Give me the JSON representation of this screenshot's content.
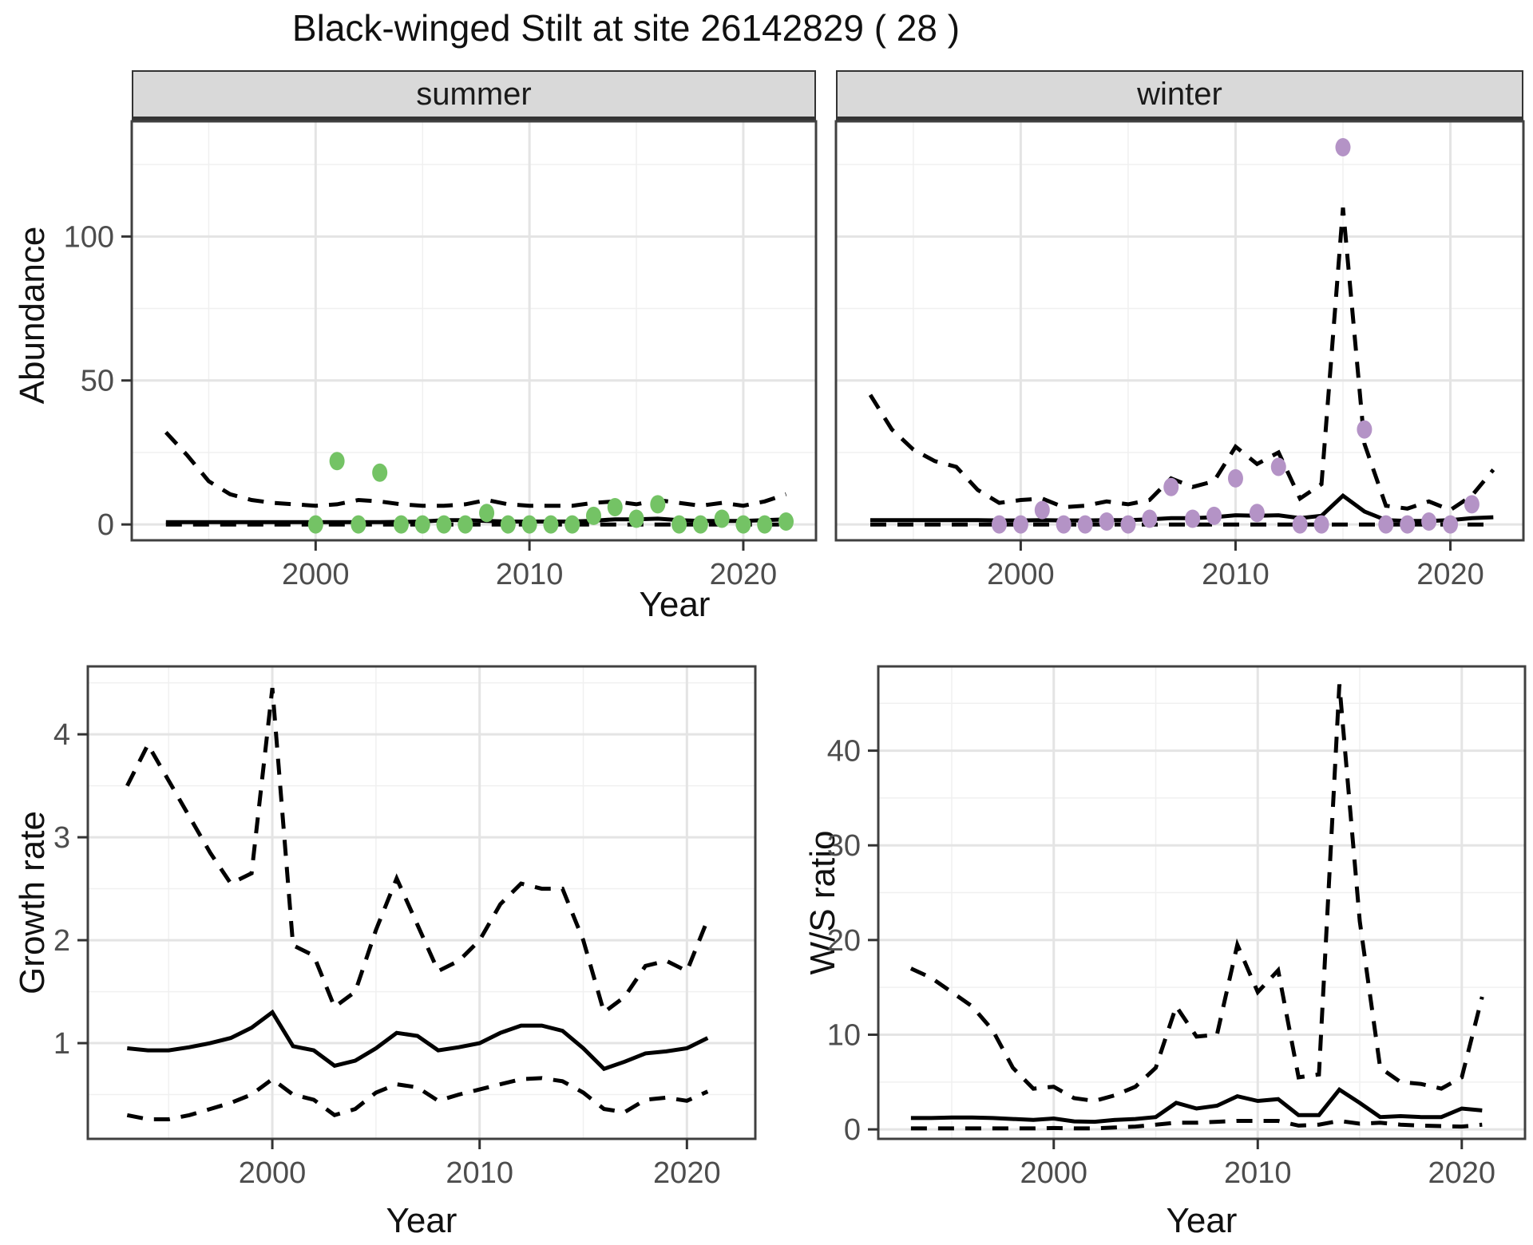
{
  "title": "Black-winged Stilt at site 26142829 ( 28 )",
  "facets": {
    "summer": "summer",
    "winter": "winter"
  },
  "axis_titles": {
    "abundance": "Abundance",
    "year_top": "Year",
    "growth": "Growth rate",
    "ws": "W/S ratio",
    "year_growth": "Year",
    "year_ws": "Year"
  },
  "colors": {
    "summer_points": "#74C365",
    "winter_points": "#B493C6",
    "line": "#000000",
    "strip_bg": "#d9d9d9",
    "grid_major": "#e4e4e4",
    "grid_minor": "#f0f0f0",
    "border": "#404040",
    "tick_mark": "#333333",
    "tick_text": "#4d4d4d"
  },
  "chart_data": [
    {
      "id": "abundance-summer",
      "type": "line",
      "facet": "summer",
      "xlabel": "Year",
      "ylabel": "Abundance",
      "xlim": [
        1991.4,
        2023.4
      ],
      "ylim": [
        -5.5,
        140
      ],
      "x_major": [
        2000,
        2010,
        2020
      ],
      "x_minor": [
        1995,
        2005,
        2015
      ],
      "y_major": [
        0,
        50,
        100
      ],
      "y_minor": [
        25,
        75,
        125
      ],
      "ticks_left": true,
      "series": [
        {
          "name": "upper-ci",
          "style": "dashed",
          "x": [
            1993,
            1994,
            1995,
            1996,
            1997,
            1998,
            1999,
            2000,
            2001,
            2002,
            2003,
            2004,
            2005,
            2006,
            2007,
            2008,
            2009,
            2010,
            2011,
            2012,
            2013,
            2014,
            2015,
            2016,
            2017,
            2018,
            2019,
            2020,
            2021,
            2022
          ],
          "y": [
            32,
            24,
            15,
            10.5,
            8.5,
            7.5,
            7,
            6.5,
            7,
            8.5,
            8,
            7,
            6.5,
            6.5,
            7,
            8.5,
            7,
            6.5,
            6.5,
            6.5,
            7.5,
            8,
            7,
            8.5,
            7.5,
            6.5,
            7.5,
            6.5,
            8,
            10.5
          ]
        },
        {
          "name": "median",
          "style": "solid",
          "x": [
            1993,
            1994,
            1995,
            1996,
            1997,
            1998,
            1999,
            2000,
            2001,
            2002,
            2003,
            2004,
            2005,
            2006,
            2007,
            2008,
            2009,
            2010,
            2011,
            2012,
            2013,
            2014,
            2015,
            2016,
            2017,
            2018,
            2019,
            2020,
            2021,
            2022
          ],
          "y": [
            0.8,
            0.8,
            0.8,
            0.8,
            0.8,
            0.8,
            0.8,
            0.8,
            0.8,
            0.8,
            0.8,
            0.9,
            1.0,
            1.5,
            1.5,
            1.2,
            1.0,
            1.0,
            1.0,
            1.0,
            1.3,
            1.8,
            1.8,
            2.0,
            1.5,
            1.2,
            1.2,
            1.2,
            1.5,
            1.8
          ]
        },
        {
          "name": "lower-ci",
          "style": "dashed",
          "x": [
            1993,
            2022
          ],
          "y": [
            0,
            0
          ]
        },
        {
          "name": "observed",
          "style": "points",
          "color_key": "summer_points",
          "x": [
            2000,
            2001,
            2002,
            2003,
            2004,
            2005,
            2006,
            2007,
            2008,
            2009,
            2010,
            2011,
            2012,
            2013,
            2014,
            2015,
            2016,
            2017,
            2018,
            2019,
            2020,
            2021,
            2022
          ],
          "y": [
            0,
            22,
            0,
            18,
            0,
            0,
            0,
            0,
            4,
            0,
            0,
            0,
            0,
            3,
            6,
            2,
            7,
            0,
            0,
            2,
            0,
            0,
            1
          ]
        }
      ]
    },
    {
      "id": "abundance-winter",
      "type": "line",
      "facet": "winter",
      "xlabel": "Year",
      "ylabel": "Abundance",
      "xlim": [
        1991.4,
        2023.4
      ],
      "ylim": [
        -5.5,
        140
      ],
      "x_major": [
        2000,
        2010,
        2020
      ],
      "x_minor": [
        1995,
        2005,
        2015
      ],
      "y_major": [
        0,
        50,
        100
      ],
      "y_minor": [
        25,
        75,
        125
      ],
      "ticks_left": false,
      "series": [
        {
          "name": "upper-ci",
          "style": "dashed",
          "x": [
            1993,
            1994,
            1995,
            1996,
            1997,
            1998,
            1999,
            2000,
            2001,
            2002,
            2003,
            2004,
            2005,
            2006,
            2007,
            2008,
            2009,
            2010,
            2011,
            2012,
            2013,
            2014,
            2015,
            2016,
            2017,
            2018,
            2019,
            2020,
            2021,
            2022
          ],
          "y": [
            45,
            33,
            26,
            22,
            20,
            12,
            7.5,
            8.5,
            9,
            6,
            6.5,
            8,
            7,
            8.5,
            16,
            13,
            15,
            27,
            21,
            25,
            9,
            14,
            110,
            28,
            6.5,
            5.5,
            8,
            5,
            10,
            19
          ]
        },
        {
          "name": "median",
          "style": "solid",
          "x": [
            1993,
            1994,
            1995,
            1996,
            1997,
            1998,
            1999,
            2000,
            2001,
            2002,
            2003,
            2004,
            2005,
            2006,
            2007,
            2008,
            2009,
            2010,
            2011,
            2012,
            2013,
            2014,
            2015,
            2016,
            2017,
            2018,
            2019,
            2020,
            2021,
            2022
          ],
          "y": [
            1.5,
            1.5,
            1.5,
            1.5,
            1.5,
            1.5,
            1.4,
            1.4,
            1.5,
            1.4,
            1.4,
            1.5,
            1.5,
            1.8,
            2.2,
            2.2,
            2.5,
            3.2,
            3.0,
            3.2,
            2.2,
            3.0,
            10,
            4.5,
            1.5,
            1.2,
            1.2,
            1.5,
            2.2,
            2.5
          ]
        },
        {
          "name": "lower-ci",
          "style": "dashed",
          "x": [
            1993,
            2022
          ],
          "y": [
            0,
            0
          ]
        },
        {
          "name": "observed",
          "style": "points",
          "color_key": "winter_points",
          "x": [
            1999,
            2000,
            2001,
            2002,
            2003,
            2004,
            2005,
            2006,
            2007,
            2008,
            2009,
            2010,
            2011,
            2012,
            2013,
            2014,
            2015,
            2016,
            2017,
            2018,
            2019,
            2020,
            2021
          ],
          "y": [
            0,
            0,
            5,
            0,
            0,
            1,
            0,
            2,
            13,
            2,
            3,
            16,
            4,
            20,
            0,
            0,
            131,
            33,
            0,
            0,
            1,
            0,
            7
          ]
        }
      ]
    },
    {
      "id": "growth-rate",
      "type": "line",
      "facet": null,
      "xlabel": "Year",
      "ylabel": "Growth rate",
      "xlim": [
        1991.1,
        2023.3
      ],
      "ylim": [
        0.07,
        4.66
      ],
      "x_major": [
        2000,
        2010,
        2020
      ],
      "x_minor": [
        1995,
        2005,
        2015
      ],
      "y_major": [
        1,
        2,
        3,
        4
      ],
      "y_minor": [
        0.5,
        1.5,
        2.5,
        3.5,
        4.5
      ],
      "ticks_left": true,
      "series": [
        {
          "name": "upper-ci",
          "style": "dashed",
          "x": [
            1993,
            1994,
            1995,
            1996,
            1997,
            1998,
            1999,
            2000,
            2001,
            2002,
            2003,
            2004,
            2005,
            2006,
            2007,
            2008,
            2009,
            2010,
            2011,
            2012,
            2013,
            2014,
            2015,
            2016,
            2017,
            2018,
            2019,
            2020,
            2021
          ],
          "y": [
            3.5,
            3.9,
            3.55,
            3.2,
            2.85,
            2.55,
            2.65,
            4.45,
            1.95,
            1.85,
            1.35,
            1.5,
            2.1,
            2.6,
            2.15,
            1.7,
            1.8,
            2.0,
            2.35,
            2.55,
            2.5,
            2.5,
            2.0,
            1.3,
            1.45,
            1.75,
            1.8,
            1.7,
            2.2
          ]
        },
        {
          "name": "median",
          "style": "solid",
          "x": [
            1993,
            1994,
            1995,
            1996,
            1997,
            1998,
            1999,
            2000,
            2001,
            2002,
            2003,
            2004,
            2005,
            2006,
            2007,
            2008,
            2009,
            2010,
            2011,
            2012,
            2013,
            2014,
            2015,
            2016,
            2017,
            2018,
            2019,
            2020,
            2021
          ],
          "y": [
            0.95,
            0.93,
            0.93,
            0.96,
            1.0,
            1.05,
            1.15,
            1.3,
            0.97,
            0.93,
            0.78,
            0.83,
            0.95,
            1.1,
            1.07,
            0.93,
            0.96,
            1.0,
            1.1,
            1.17,
            1.17,
            1.12,
            0.95,
            0.75,
            0.82,
            0.9,
            0.92,
            0.95,
            1.05
          ]
        },
        {
          "name": "lower-ci",
          "style": "dashed",
          "x": [
            1993,
            1994,
            1995,
            1996,
            1997,
            1998,
            1999,
            2000,
            2001,
            2002,
            2003,
            2004,
            2005,
            2006,
            2007,
            2008,
            2009,
            2010,
            2011,
            2012,
            2013,
            2014,
            2015,
            2016,
            2017,
            2018,
            2019,
            2020,
            2021
          ],
          "y": [
            0.3,
            0.26,
            0.26,
            0.3,
            0.36,
            0.42,
            0.5,
            0.65,
            0.5,
            0.45,
            0.3,
            0.36,
            0.52,
            0.6,
            0.57,
            0.44,
            0.5,
            0.55,
            0.6,
            0.65,
            0.66,
            0.63,
            0.52,
            0.36,
            0.33,
            0.45,
            0.47,
            0.44,
            0.53
          ]
        }
      ]
    },
    {
      "id": "ws-ratio",
      "type": "line",
      "facet": null,
      "xlabel": "Year",
      "ylabel": "W/S ratio",
      "xlim": [
        1991.4,
        2023.1
      ],
      "ylim": [
        -1.0,
        48.9
      ],
      "x_major": [
        2000,
        2010,
        2020
      ],
      "x_minor": [
        1995,
        2005,
        2015
      ],
      "y_major": [
        0,
        10,
        20,
        30,
        40
      ],
      "y_minor": [
        5,
        15,
        25,
        35,
        45
      ],
      "ticks_left": true,
      "series": [
        {
          "name": "upper-ci",
          "style": "dashed",
          "x": [
            1993,
            1994,
            1995,
            1996,
            1997,
            1998,
            1999,
            2000,
            2001,
            2002,
            2003,
            2004,
            2005,
            2006,
            2007,
            2008,
            2009,
            2010,
            2011,
            2012,
            2013,
            2014,
            2015,
            2016,
            2017,
            2018,
            2019,
            2020,
            2021
          ],
          "y": [
            17,
            16,
            14.5,
            13,
            10.5,
            6.5,
            4.3,
            4.5,
            3.3,
            3.0,
            3.6,
            4.5,
            6.5,
            13,
            9.8,
            10,
            19.5,
            14.5,
            16.8,
            5.5,
            5.8,
            47,
            22,
            6.5,
            5.0,
            4.8,
            4.3,
            5.5,
            14
          ]
        },
        {
          "name": "median",
          "style": "solid",
          "x": [
            1993,
            1994,
            1995,
            1996,
            1997,
            1998,
            1999,
            2000,
            2001,
            2002,
            2003,
            2004,
            2005,
            2006,
            2007,
            2008,
            2009,
            2010,
            2011,
            2012,
            2013,
            2014,
            2015,
            2016,
            2017,
            2018,
            2019,
            2020,
            2021
          ],
          "y": [
            1.2,
            1.2,
            1.25,
            1.25,
            1.2,
            1.1,
            1.0,
            1.15,
            0.85,
            0.8,
            1.0,
            1.1,
            1.3,
            2.8,
            2.2,
            2.5,
            3.5,
            3.0,
            3.2,
            1.5,
            1.5,
            4.2,
            2.8,
            1.3,
            1.4,
            1.3,
            1.3,
            2.2,
            2.0
          ]
        },
        {
          "name": "lower-ci",
          "style": "dashed",
          "x": [
            1993,
            1994,
            1995,
            1996,
            1997,
            1998,
            1999,
            2000,
            2001,
            2002,
            2003,
            2004,
            2005,
            2006,
            2007,
            2008,
            2009,
            2010,
            2011,
            2012,
            2013,
            2014,
            2015,
            2016,
            2017,
            2018,
            2019,
            2020,
            2021
          ],
          "y": [
            0.1,
            0.1,
            0.1,
            0.1,
            0.1,
            0.1,
            0.1,
            0.15,
            0.1,
            0.1,
            0.2,
            0.3,
            0.5,
            0.7,
            0.7,
            0.8,
            0.9,
            0.9,
            0.9,
            0.4,
            0.5,
            0.9,
            0.6,
            0.7,
            0.5,
            0.4,
            0.35,
            0.3,
            0.5
          ]
        }
      ]
    }
  ]
}
